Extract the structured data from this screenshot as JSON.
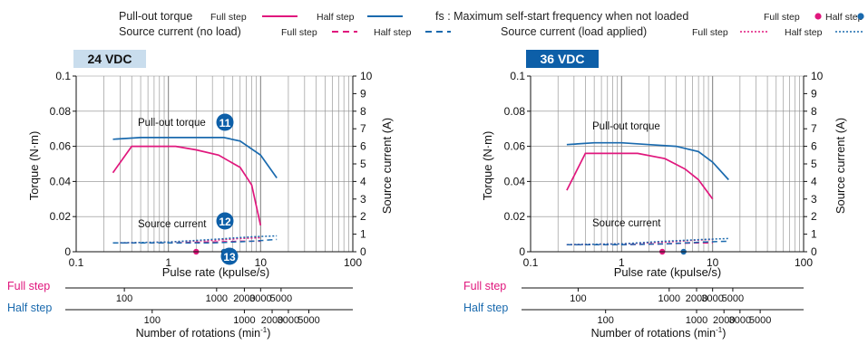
{
  "legend": {
    "pullout_label": "Pull-out torque",
    "source_noload_label": "Source current (no load)",
    "fs_label": "fs : Maximum self-start frequency when not loaded",
    "source_load_label": "Source current (load applied)",
    "full_step": "Full step",
    "half_step": "Half step"
  },
  "colors": {
    "full": "#e0177d",
    "half": "#1a6aae",
    "badge_24": "#c9dded",
    "badge_36": "#0d5fa8",
    "grid": "#888888"
  },
  "chart_data": [
    {
      "id": "24vdc",
      "type": "line",
      "title": "24 VDC",
      "xlabel": "Pulse rate (kpulse/s)",
      "ylabel": "Torque (N·m)",
      "y2label": "Source current (A)",
      "xscale": "log",
      "xlim": [
        0.1,
        100
      ],
      "ylim": [
        0,
        0.1
      ],
      "y2lim": [
        0,
        10
      ],
      "xticks": [
        "0.1",
        "1",
        "10",
        "100"
      ],
      "yticks": [
        "0",
        "0.02",
        "0.04",
        "0.06",
        "0.08",
        "0.1"
      ],
      "y2ticks": [
        "0",
        "1",
        "2",
        "3",
        "4",
        "5",
        "6",
        "7",
        "8",
        "9",
        "10"
      ],
      "grid": true,
      "annotations": {
        "pullout": "Pull-out torque",
        "source": "Source current",
        "badges": [
          "11",
          "12",
          "13"
        ]
      },
      "series": [
        {
          "name": "Pull-out torque Full step",
          "axis": "torque",
          "color": "full",
          "dash": "solid",
          "x": [
            0.25,
            0.4,
            0.7,
            1.2,
            2,
            3.5,
            6,
            8,
            10
          ],
          "y": [
            0.045,
            0.06,
            0.06,
            0.06,
            0.058,
            0.055,
            0.048,
            0.038,
            0.015
          ]
        },
        {
          "name": "Pull-out torque Half step",
          "axis": "torque",
          "color": "half",
          "dash": "solid",
          "x": [
            0.25,
            0.5,
            1,
            2,
            4,
            6,
            10,
            15
          ],
          "y": [
            0.064,
            0.065,
            0.065,
            0.065,
            0.065,
            0.063,
            0.055,
            0.042
          ]
        },
        {
          "name": "Source current (no load) Full step",
          "axis": "current",
          "color": "full",
          "dash": "dash",
          "x": [
            0.25,
            1,
            3,
            6,
            10
          ],
          "y": [
            0.5,
            0.5,
            0.55,
            0.6,
            0.6
          ]
        },
        {
          "name": "Source current (no load) Half step",
          "axis": "current",
          "color": "half",
          "dash": "dash",
          "x": [
            0.25,
            1,
            3,
            8,
            15
          ],
          "y": [
            0.5,
            0.5,
            0.5,
            0.6,
            0.7
          ]
        },
        {
          "name": "Source current (load applied) Full step",
          "axis": "current",
          "color": "full",
          "dash": "dot",
          "x": [
            0.25,
            1,
            3,
            6,
            10
          ],
          "y": [
            0.5,
            0.55,
            0.65,
            0.75,
            0.8
          ]
        },
        {
          "name": "Source current (load applied) Half step",
          "axis": "current",
          "color": "half",
          "dash": "dot",
          "x": [
            0.25,
            1,
            3,
            8,
            15
          ],
          "y": [
            0.5,
            0.55,
            0.7,
            0.85,
            0.9
          ]
        }
      ],
      "fs_points": [
        {
          "color": "full",
          "x": 2
        },
        {
          "color": "half",
          "x": 4
        }
      ]
    },
    {
      "id": "36vdc",
      "type": "line",
      "title": "36 VDC",
      "xlabel": "Pulse rate (kpulse/s)",
      "ylabel": "Torque (N·m)",
      "y2label": "Source current (A)",
      "xscale": "log",
      "xlim": [
        0.1,
        100
      ],
      "ylim": [
        0,
        0.1
      ],
      "y2lim": [
        0,
        10
      ],
      "xticks": [
        "0.1",
        "1",
        "10",
        "100"
      ],
      "yticks": [
        "0",
        "0.02",
        "0.04",
        "0.06",
        "0.08",
        "0.1"
      ],
      "y2ticks": [
        "0",
        "1",
        "2",
        "3",
        "4",
        "5",
        "6",
        "7",
        "8",
        "9",
        "10"
      ],
      "grid": true,
      "annotations": {
        "pullout": "Pull-out torque",
        "source": "Source current",
        "badges": []
      },
      "series": [
        {
          "name": "Pull-out torque Full step",
          "axis": "torque",
          "color": "full",
          "dash": "solid",
          "x": [
            0.25,
            0.4,
            0.7,
            1.5,
            3,
            5,
            7,
            10
          ],
          "y": [
            0.035,
            0.056,
            0.056,
            0.056,
            0.053,
            0.047,
            0.041,
            0.03
          ]
        },
        {
          "name": "Pull-out torque Half step",
          "axis": "torque",
          "color": "half",
          "dash": "solid",
          "x": [
            0.25,
            0.5,
            1,
            2,
            4,
            7,
            10,
            15
          ],
          "y": [
            0.061,
            0.062,
            0.062,
            0.061,
            0.06,
            0.057,
            0.051,
            0.041
          ]
        },
        {
          "name": "Source current (no load) Full step",
          "axis": "current",
          "color": "full",
          "dash": "dash",
          "x": [
            0.25,
            1,
            3,
            6,
            10
          ],
          "y": [
            0.4,
            0.4,
            0.45,
            0.5,
            0.5
          ]
        },
        {
          "name": "Source current (no load) Half step",
          "axis": "current",
          "color": "half",
          "dash": "dash",
          "x": [
            0.25,
            1,
            3,
            8,
            15
          ],
          "y": [
            0.4,
            0.4,
            0.45,
            0.55,
            0.6
          ]
        },
        {
          "name": "Source current (load applied) Full step",
          "axis": "current",
          "color": "full",
          "dash": "dot",
          "x": [
            0.25,
            1,
            3,
            6,
            10
          ],
          "y": [
            0.4,
            0.45,
            0.55,
            0.65,
            0.7
          ]
        },
        {
          "name": "Source current (load applied) Half step",
          "axis": "current",
          "color": "half",
          "dash": "dot",
          "x": [
            0.25,
            1,
            3,
            8,
            15
          ],
          "y": [
            0.4,
            0.45,
            0.6,
            0.7,
            0.75
          ]
        }
      ],
      "fs_points": [
        {
          "color": "full",
          "x": 2.8
        },
        {
          "color": "half",
          "x": 4.8
        }
      ]
    }
  ],
  "rotation_scales": {
    "full_label": "Full step",
    "half_label": "Half step",
    "full_ticks": [
      {
        "label": "100",
        "x": 0.333
      },
      {
        "label": "1000",
        "x": 3.333
      },
      {
        "label": "2000",
        "x": 6.667
      },
      {
        "label": "3000",
        "x": 10
      },
      {
        "label": "5000",
        "x": 16.667
      }
    ],
    "half_ticks": [
      {
        "label": "100",
        "x": 0.667
      },
      {
        "label": "1000",
        "x": 6.667
      },
      {
        "label": "2000",
        "x": 13.333
      },
      {
        "label": "3000",
        "x": 20
      },
      {
        "label": "5000",
        "x": 33.333
      }
    ],
    "axis_label": "Number of rotations (min",
    "axis_label_sup": "-1",
    "axis_label_end": ")"
  }
}
